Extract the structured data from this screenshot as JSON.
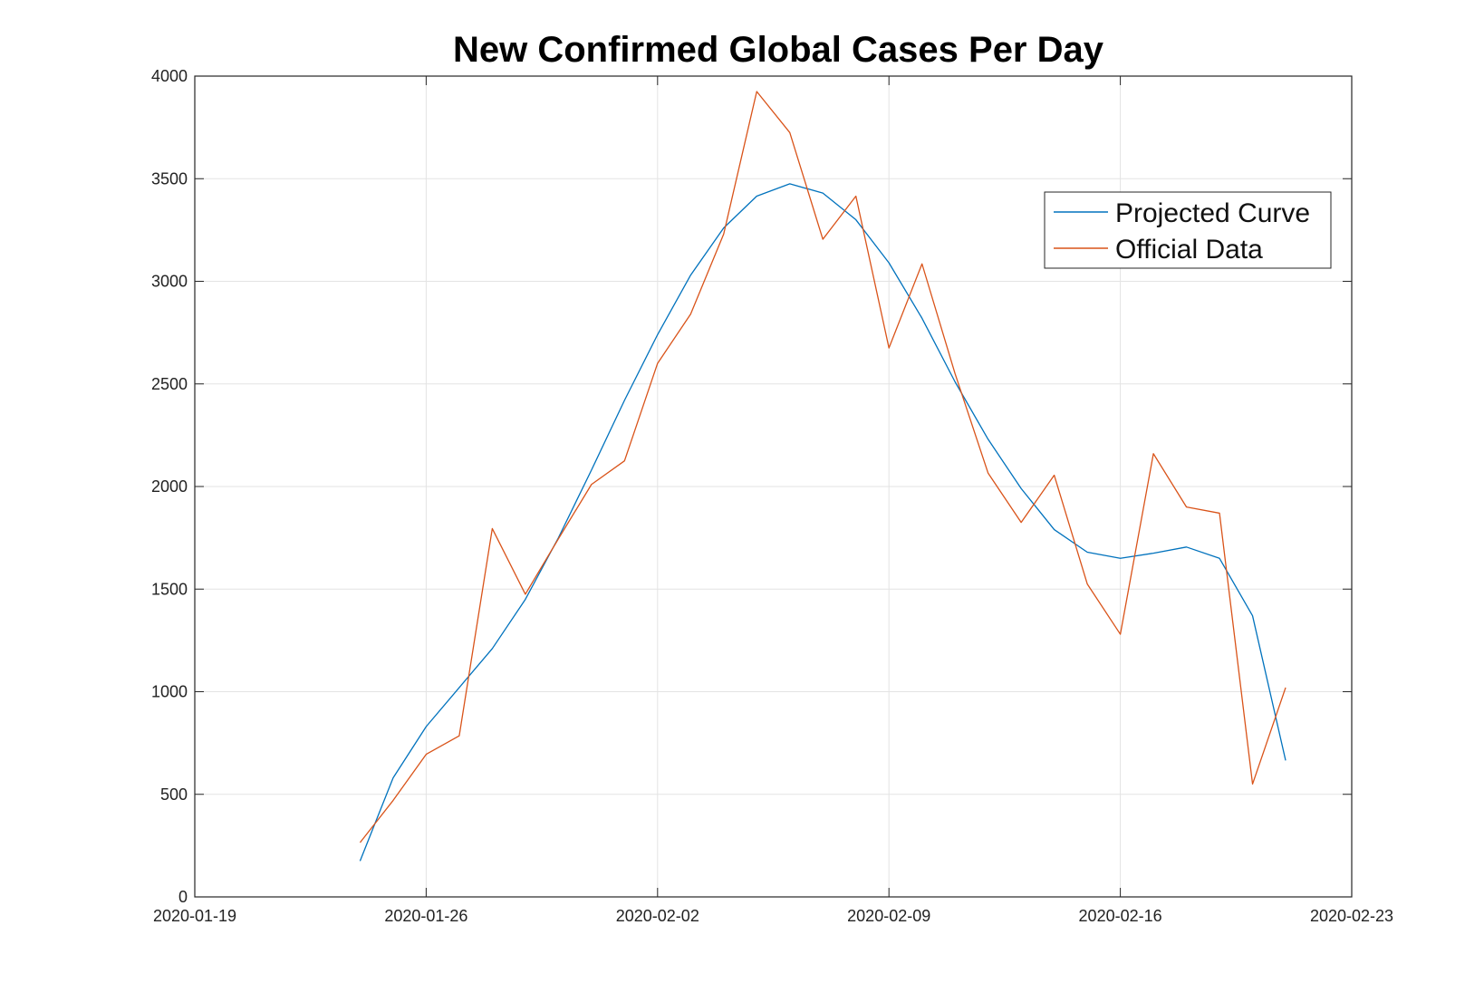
{
  "chart_data": {
    "type": "line",
    "title": "New Confirmed Global Cases Per Day",
    "xlabel": "",
    "ylabel": "",
    "x_axis_type": "date",
    "xlim": [
      "2020-01-19",
      "2020-02-23"
    ],
    "ylim": [
      0,
      4000
    ],
    "x_ticks": [
      "2020-01-19",
      "2020-01-26",
      "2020-02-02",
      "2020-02-09",
      "2020-02-16",
      "2020-02-23"
    ],
    "y_ticks": [
      0,
      500,
      1000,
      1500,
      2000,
      2500,
      3000,
      3500,
      4000
    ],
    "grid": true,
    "legend_position": "top-right",
    "x": [
      "2020-01-24",
      "2020-01-25",
      "2020-01-26",
      "2020-01-27",
      "2020-01-28",
      "2020-01-29",
      "2020-01-30",
      "2020-01-31",
      "2020-02-01",
      "2020-02-02",
      "2020-02-03",
      "2020-02-04",
      "2020-02-05",
      "2020-02-06",
      "2020-02-07",
      "2020-02-08",
      "2020-02-09",
      "2020-02-10",
      "2020-02-11",
      "2020-02-12",
      "2020-02-13",
      "2020-02-14",
      "2020-02-15",
      "2020-02-16",
      "2020-02-17",
      "2020-02-18",
      "2020-02-19",
      "2020-02-20",
      "2020-02-21"
    ],
    "series": [
      {
        "name": "Projected Curve",
        "color": "#0072BD",
        "values": [
          175,
          580,
          830,
          1020,
          1210,
          1450,
          1750,
          2080,
          2420,
          2740,
          3030,
          3260,
          3415,
          3475,
          3430,
          3300,
          3090,
          2820,
          2510,
          2230,
          1990,
          1790,
          1680,
          1650,
          1675,
          1705,
          1650,
          1370,
          665
        ]
      },
      {
        "name": "Official Data",
        "color": "#D95319",
        "values": [
          265,
          470,
          695,
          785,
          1795,
          1475,
          1745,
          2010,
          2125,
          2600,
          2840,
          3230,
          3925,
          3725,
          3205,
          3415,
          2675,
          3085,
          2550,
          2065,
          1825,
          2055,
          1525,
          1280,
          2160,
          1900,
          1870,
          550,
          1020
        ]
      }
    ]
  }
}
